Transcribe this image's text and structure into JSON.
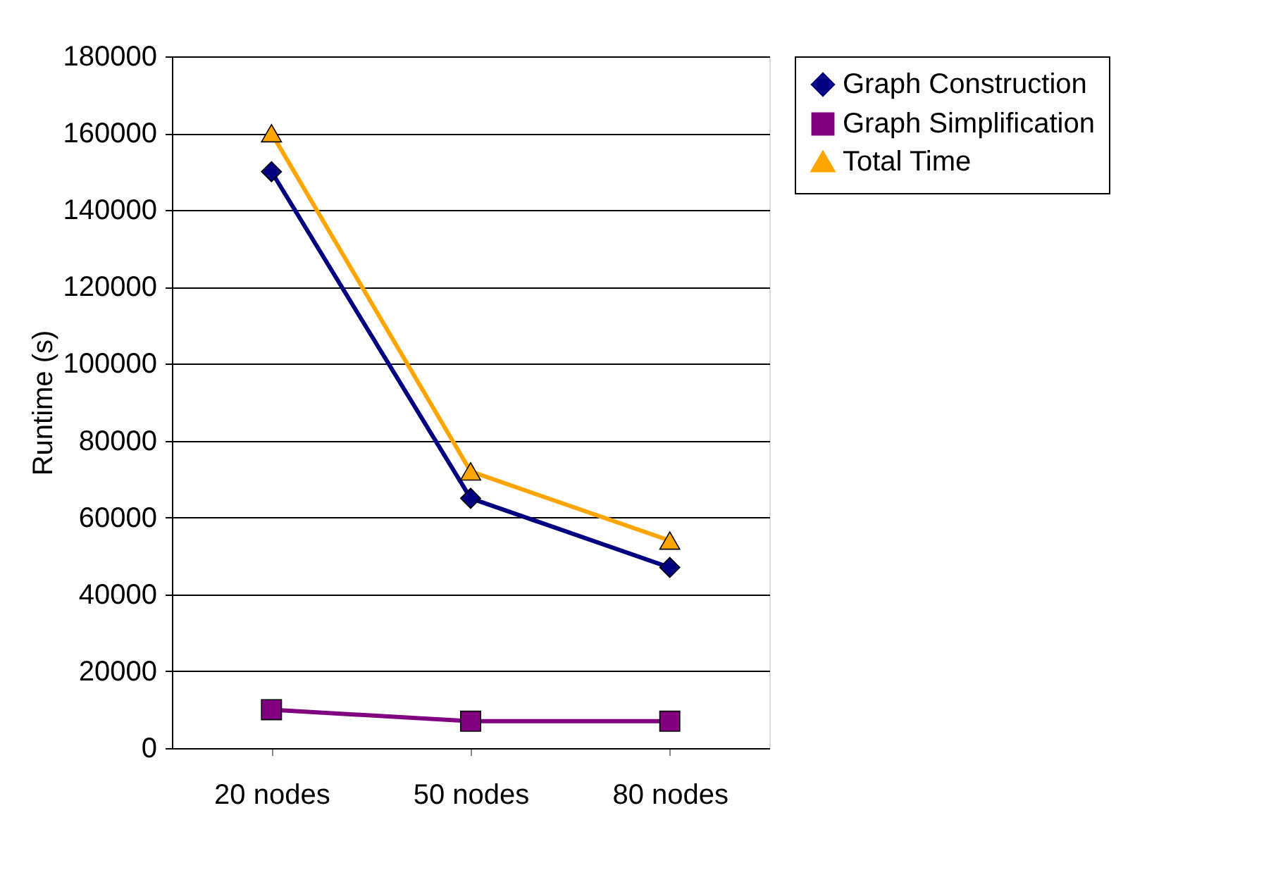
{
  "chart_data": {
    "type": "line",
    "ylabel": "Runtime (s)",
    "categories": [
      "20 nodes",
      "50 nodes",
      "80 nodes"
    ],
    "series": [
      {
        "name": "Graph Construction",
        "color": "#000080",
        "marker": "diamond",
        "values": [
          150000,
          65000,
          47000
        ]
      },
      {
        "name": "Graph Simplification",
        "color": "#800080",
        "marker": "square",
        "values": [
          10000,
          7000,
          7000
        ]
      },
      {
        "name": "Total Time",
        "color": "#ffa500",
        "marker": "triangle",
        "values": [
          160000,
          72000,
          54000
        ]
      }
    ],
    "ylim": [
      0,
      180000
    ],
    "yticks": [
      0,
      20000,
      40000,
      60000,
      80000,
      100000,
      120000,
      140000,
      160000,
      180000
    ],
    "grid": "y",
    "legend": "right"
  }
}
